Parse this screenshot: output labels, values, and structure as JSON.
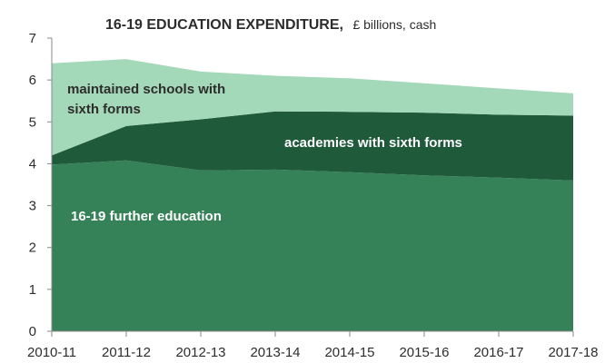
{
  "chart_data": {
    "type": "area",
    "title": "16-19 EDUCATION EXPENDITURE,",
    "subtitle": "£ billions,  cash",
    "categories": [
      "2010-11",
      "2011-12",
      "2012-13",
      "2013-14",
      "2014-15",
      "2015-16",
      "2016-17",
      "2017-18"
    ],
    "ylim": [
      0,
      7
    ],
    "y_ticks": [
      0,
      1,
      2,
      3,
      4,
      5,
      6,
      7
    ],
    "stacked": true,
    "series": [
      {
        "name": "16-19 further education",
        "values": [
          3.98,
          4.08,
          3.84,
          3.86,
          3.8,
          3.72,
          3.67,
          3.6
        ],
        "color": "#358258"
      },
      {
        "name": "academies with sixth forms",
        "values": [
          0.22,
          0.82,
          1.22,
          1.39,
          1.44,
          1.5,
          1.5,
          1.55
        ],
        "color": "#1f5a3a"
      },
      {
        "name": "maintained schools with sixth forms",
        "values": [
          2.2,
          1.6,
          1.14,
          0.85,
          0.8,
          0.7,
          0.63,
          0.53
        ],
        "color": "#a3d8b8"
      }
    ],
    "series_label_lines": [
      [
        "16-19  further education"
      ],
      [
        "academies with sixth forms"
      ],
      [
        "maintained schools with",
        "sixth forms"
      ]
    ],
    "series_label_colors": [
      "#ffffff",
      "#ffffff",
      "#2d2d2d"
    ],
    "grid": false,
    "legend": "none (labels inside areas)"
  }
}
